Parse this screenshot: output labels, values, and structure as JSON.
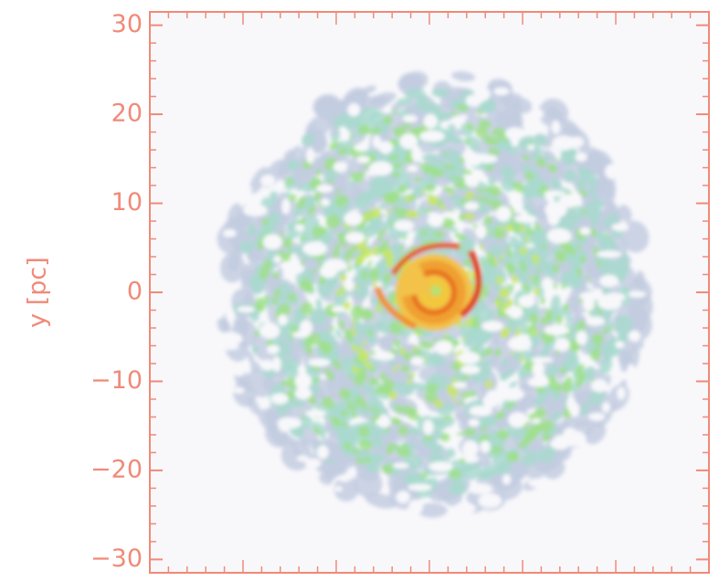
{
  "chart_data": {
    "type": "image",
    "ylabel": "y [pc]",
    "ylim": [
      -31.5,
      31.5
    ],
    "yticks": [
      {
        "value": -30,
        "label": "−30"
      },
      {
        "value": -20,
        "label": "−20"
      },
      {
        "value": -10,
        "label": "−10"
      },
      0,
      10,
      20,
      30
    ],
    "axis_color": "#f08a78"
  }
}
